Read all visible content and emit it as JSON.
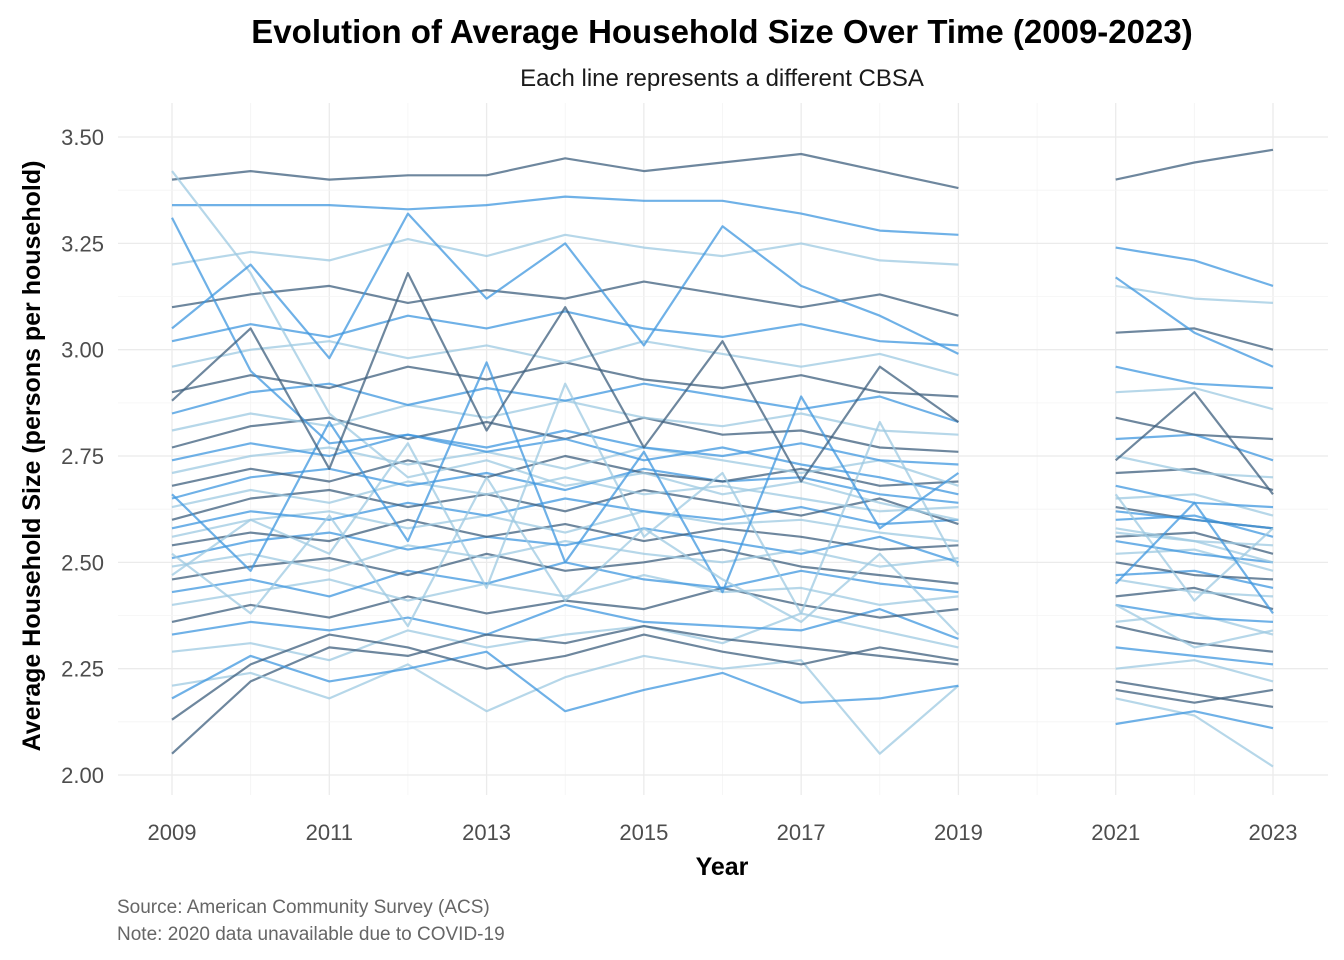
{
  "chart_data": {
    "type": "line",
    "title": "Evolution of Average Household Size Over Time (2009-2023)",
    "subtitle": "Each line represents a different CBSA",
    "xlabel": "Year",
    "ylabel": "Average Household Size (persons per household)",
    "caption_lines": [
      "Source: American Community Survey (ACS)",
      "Note: 2020 data unavailable due to COVID-19"
    ],
    "x_ticks": [
      "2009",
      "2011",
      "2013",
      "2015",
      "2017",
      "2019",
      "2021",
      "2023"
    ],
    "y_ticks": [
      "2.00",
      "2.25",
      "2.50",
      "2.75",
      "3.00",
      "3.25",
      "3.50"
    ],
    "xlim": [
      2009,
      2023
    ],
    "ylim": [
      2.0,
      3.5
    ],
    "grid": true,
    "legend": "none",
    "missing_years": [
      2020
    ],
    "colors": {
      "light": "#9ecae1",
      "mid": "#3f97df",
      "dark": "#3d5f7e"
    },
    "series": [
      {
        "values": [
          2.29,
          2.31,
          2.27,
          2.34,
          2.3,
          2.33,
          2.35,
          2.31,
          2.38,
          2.34,
          2.3,
          null,
          2.25,
          2.27,
          2.22
        ]
      },
      {
        "values": [
          2.33,
          2.36,
          2.34,
          2.37,
          2.33,
          2.4,
          2.36,
          2.35,
          2.34,
          2.39,
          2.32,
          null,
          2.3,
          2.28,
          2.26
        ]
      },
      {
        "values": [
          2.36,
          2.4,
          2.37,
          2.42,
          2.38,
          2.41,
          2.39,
          2.44,
          2.4,
          2.37,
          2.39,
          null,
          2.35,
          2.31,
          2.29
        ]
      },
      {
        "values": [
          2.4,
          2.43,
          2.46,
          2.41,
          2.45,
          2.42,
          2.47,
          2.43,
          2.44,
          2.4,
          2.42,
          null,
          2.36,
          2.38,
          2.33
        ]
      },
      {
        "values": [
          2.43,
          2.46,
          2.42,
          2.48,
          2.45,
          2.5,
          2.46,
          2.44,
          2.48,
          2.45,
          2.43,
          null,
          2.4,
          2.37,
          2.36
        ]
      },
      {
        "values": [
          2.46,
          2.49,
          2.51,
          2.47,
          2.52,
          2.48,
          2.5,
          2.53,
          2.49,
          2.47,
          2.45,
          null,
          2.42,
          2.44,
          2.39
        ]
      },
      {
        "values": [
          2.49,
          2.52,
          2.48,
          2.54,
          2.51,
          2.55,
          2.52,
          2.5,
          2.53,
          2.49,
          2.51,
          null,
          2.46,
          2.43,
          2.42
        ]
      },
      {
        "values": [
          2.51,
          2.55,
          2.57,
          2.53,
          2.56,
          2.54,
          2.58,
          2.55,
          2.52,
          2.56,
          2.5,
          null,
          2.47,
          2.48,
          2.44
        ]
      },
      {
        "values": [
          2.54,
          2.57,
          2.55,
          2.6,
          2.56,
          2.59,
          2.55,
          2.58,
          2.56,
          2.53,
          2.54,
          null,
          2.5,
          2.47,
          2.46
        ]
      },
      {
        "values": [
          2.56,
          2.6,
          2.62,
          2.58,
          2.61,
          2.57,
          2.62,
          2.59,
          2.6,
          2.57,
          2.55,
          null,
          2.52,
          2.53,
          2.48
        ]
      },
      {
        "values": [
          2.58,
          2.62,
          2.6,
          2.64,
          2.61,
          2.65,
          2.62,
          2.6,
          2.63,
          2.59,
          2.6,
          null,
          2.55,
          2.52,
          2.5
        ]
      },
      {
        "values": [
          2.6,
          2.65,
          2.67,
          2.63,
          2.66,
          2.62,
          2.67,
          2.64,
          2.61,
          2.65,
          2.59,
          null,
          2.56,
          2.57,
          2.52
        ]
      },
      {
        "values": [
          2.63,
          2.67,
          2.64,
          2.69,
          2.66,
          2.7,
          2.66,
          2.68,
          2.65,
          2.62,
          2.63,
          null,
          2.58,
          2.55,
          2.54
        ]
      },
      {
        "values": [
          2.65,
          2.7,
          2.72,
          2.68,
          2.71,
          2.67,
          2.72,
          2.69,
          2.7,
          2.66,
          2.64,
          null,
          2.6,
          2.61,
          2.56
        ]
      },
      {
        "values": [
          2.68,
          2.72,
          2.69,
          2.74,
          2.7,
          2.75,
          2.71,
          2.69,
          2.72,
          2.68,
          2.69,
          null,
          2.63,
          2.6,
          2.58
        ]
      },
      {
        "values": [
          2.71,
          2.75,
          2.77,
          2.73,
          2.76,
          2.72,
          2.77,
          2.74,
          2.71,
          2.74,
          2.68,
          null,
          2.65,
          2.66,
          2.61
        ]
      },
      {
        "values": [
          2.74,
          2.78,
          2.75,
          2.8,
          2.77,
          2.81,
          2.77,
          2.75,
          2.78,
          2.74,
          2.73,
          null,
          2.68,
          2.64,
          2.63
        ]
      },
      {
        "values": [
          2.77,
          2.82,
          2.84,
          2.79,
          2.83,
          2.79,
          2.84,
          2.8,
          2.81,
          2.77,
          2.76,
          null,
          2.71,
          2.72,
          2.67
        ]
      },
      {
        "values": [
          2.81,
          2.85,
          2.82,
          2.87,
          2.84,
          2.88,
          2.84,
          2.82,
          2.85,
          2.81,
          2.8,
          null,
          2.75,
          2.71,
          2.7
        ]
      },
      {
        "values": [
          2.85,
          2.9,
          2.92,
          2.87,
          2.91,
          2.88,
          2.92,
          2.89,
          2.86,
          2.89,
          2.83,
          null,
          2.79,
          2.8,
          2.74
        ]
      },
      {
        "values": [
          2.9,
          2.94,
          2.91,
          2.96,
          2.93,
          2.97,
          2.93,
          2.91,
          2.94,
          2.9,
          2.89,
          null,
          2.84,
          2.8,
          2.79
        ]
      },
      {
        "values": [
          2.96,
          3.0,
          3.02,
          2.98,
          3.01,
          2.97,
          3.02,
          2.99,
          2.96,
          2.99,
          2.94,
          null,
          2.9,
          2.91,
          2.86
        ]
      },
      {
        "values": [
          3.02,
          3.06,
          3.03,
          3.08,
          3.05,
          3.09,
          3.05,
          3.03,
          3.06,
          3.02,
          3.01,
          null,
          2.96,
          2.92,
          2.91
        ]
      },
      {
        "values": [
          3.1,
          3.13,
          3.15,
          3.11,
          3.14,
          3.12,
          3.16,
          3.13,
          3.1,
          3.13,
          3.08,
          null,
          3.04,
          3.05,
          3.0
        ]
      },
      {
        "values": [
          3.2,
          3.23,
          3.21,
          3.26,
          3.22,
          3.27,
          3.24,
          3.22,
          3.25,
          3.21,
          3.2,
          null,
          3.15,
          3.12,
          3.11
        ]
      },
      {
        "values": [
          3.34,
          3.34,
          3.34,
          3.33,
          3.34,
          3.36,
          3.35,
          3.35,
          3.32,
          3.28,
          3.27,
          null,
          3.24,
          3.21,
          3.15
        ]
      },
      {
        "values": [
          3.4,
          3.42,
          3.4,
          3.41,
          3.41,
          3.45,
          3.42,
          3.44,
          3.46,
          3.42,
          3.38,
          null,
          3.4,
          3.44,
          3.47
        ]
      },
      {
        "values": [
          3.42,
          3.18,
          2.85,
          2.7,
          2.74,
          2.68,
          2.71,
          2.66,
          2.69,
          2.64,
          2.6,
          null,
          2.57,
          2.55,
          2.5
        ]
      },
      {
        "values": [
          3.31,
          2.95,
          2.78,
          2.8,
          2.76,
          2.79,
          2.74,
          2.77,
          2.73,
          2.7,
          2.66,
          null,
          2.62,
          2.6,
          2.58
        ]
      },
      {
        "values": [
          2.05,
          2.22,
          2.3,
          2.28,
          2.33,
          2.31,
          2.35,
          2.32,
          2.3,
          2.28,
          2.26,
          null,
          2.22,
          2.19,
          2.16
        ]
      },
      {
        "values": [
          2.21,
          2.24,
          2.18,
          2.26,
          2.15,
          2.23,
          2.28,
          2.25,
          2.27,
          2.05,
          2.21,
          null,
          2.18,
          2.14,
          2.02
        ]
      },
      {
        "values": [
          2.18,
          2.28,
          2.22,
          2.25,
          2.29,
          2.15,
          2.2,
          2.24,
          2.17,
          2.18,
          2.21,
          null,
          2.12,
          2.15,
          2.11
        ]
      },
      {
        "values": [
          2.13,
          2.26,
          2.33,
          2.3,
          2.25,
          2.28,
          2.33,
          2.29,
          2.26,
          2.3,
          2.27,
          null,
          2.2,
          2.17,
          2.2
        ]
      },
      {
        "values": [
          2.47,
          2.6,
          2.52,
          2.78,
          2.44,
          2.92,
          2.56,
          2.71,
          2.38,
          2.83,
          2.49,
          null,
          2.66,
          2.41,
          2.58
        ]
      },
      {
        "values": [
          2.66,
          2.48,
          2.83,
          2.55,
          2.97,
          2.5,
          2.76,
          2.43,
          2.89,
          2.58,
          2.71,
          null,
          2.45,
          2.64,
          2.38
        ]
      },
      {
        "values": [
          2.88,
          3.05,
          2.72,
          3.18,
          2.81,
          3.1,
          2.77,
          3.02,
          2.69,
          2.96,
          2.83,
          null,
          2.74,
          2.9,
          2.66
        ]
      },
      {
        "values": [
          2.52,
          2.38,
          2.61,
          2.35,
          2.7,
          2.41,
          2.58,
          2.46,
          2.36,
          2.52,
          2.33,
          null,
          2.4,
          2.3,
          2.34
        ]
      },
      {
        "values": [
          3.05,
          3.2,
          2.98,
          3.32,
          3.12,
          3.25,
          3.01,
          3.29,
          3.15,
          3.08,
          2.99,
          null,
          3.17,
          3.04,
          2.96
        ]
      }
    ]
  }
}
